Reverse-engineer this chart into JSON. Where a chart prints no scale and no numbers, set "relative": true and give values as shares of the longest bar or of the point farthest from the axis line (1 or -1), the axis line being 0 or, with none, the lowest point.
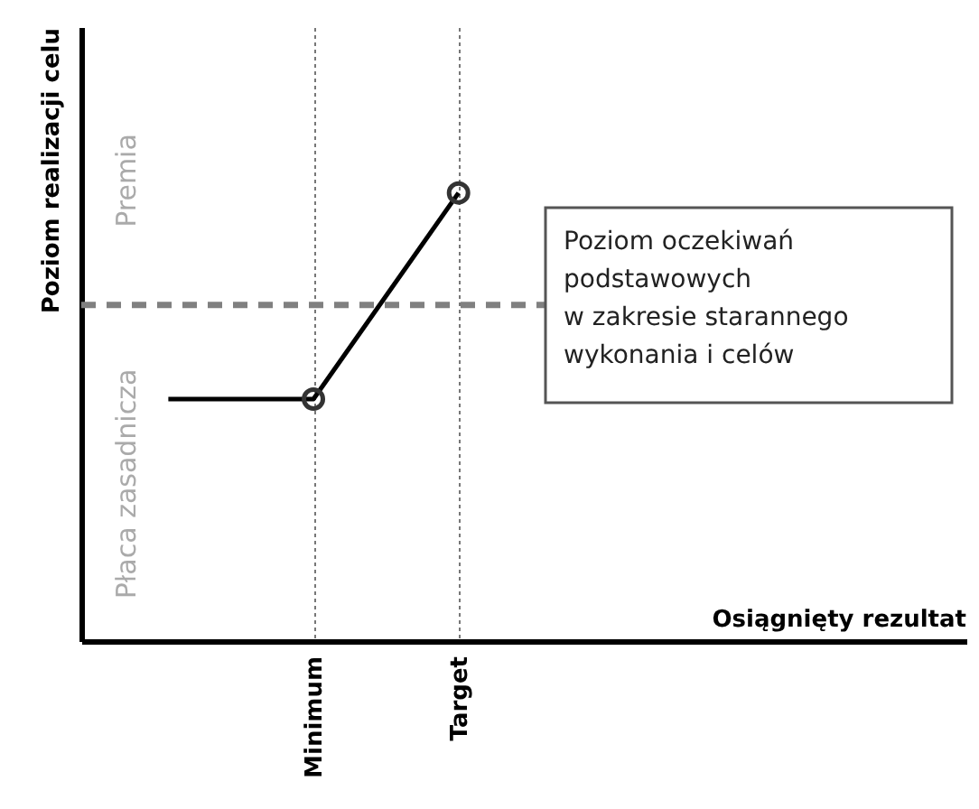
{
  "chart_data": {
    "type": "line",
    "relative": true,
    "ylabel": "Poziom realizacji celu",
    "categories": [
      null,
      "Minimum",
      "Target"
    ],
    "grid": "x",
    "series": [
      {
        "color": "#000000",
        "values": [
          0.54,
          0.54,
          1
        ],
        "marker": "none",
        "line_style": "solid"
      },
      {
        "type": "scatter",
        "color": "#333333",
        "values": [
          null,
          0.54,
          1
        ],
        "marker": "circle"
      }
    ],
    "ref_lines": [
      {
        "axis": "y",
        "value": 0.75,
        "label": "Poziom oczekiwań\npodstawowych\nw zakresie starannego\nwykonania i celów",
        "color": "#808080",
        "line_style": "dashed"
      }
    ],
    "annotations": [
      "Premia",
      "Płaca zasadnicza",
      "Osiągnięty rezultat"
    ]
  }
}
